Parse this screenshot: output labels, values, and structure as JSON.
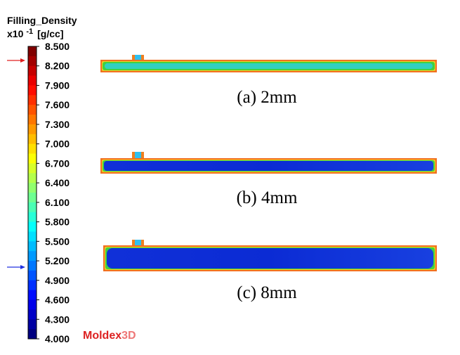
{
  "legend": {
    "title": "Filling_Density",
    "unit_prefix": "x10",
    "exponent": "-1",
    "unit": "[g/cc]",
    "ticks": [
      "8.500",
      "8.200",
      "7.900",
      "7.600",
      "7.300",
      "7.000",
      "6.700",
      "6.400",
      "6.100",
      "5.800",
      "5.500",
      "5.200",
      "4.900",
      "4.600",
      "4.300",
      "4.000"
    ]
  },
  "panels": [
    {
      "caption": "(a) 2mm"
    },
    {
      "caption": "(b) 4mm"
    },
    {
      "caption": "(c) 8mm"
    }
  ],
  "logo": {
    "brand": "Moldex",
    "suffix": "3D"
  }
}
